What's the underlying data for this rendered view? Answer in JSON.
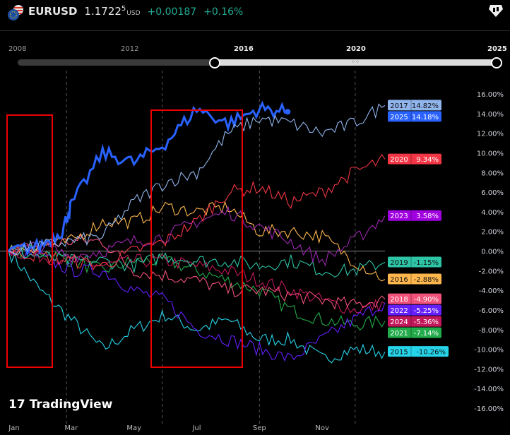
{
  "header": {
    "symbol": "EURUSD",
    "price_main": "1.1722",
    "price_sup": "5",
    "currency": "USD",
    "change": "+0.00187",
    "change_pct": "+0.16%",
    "flag_icon": "eu-us-flag-icon",
    "right_icon": "candles-badge-icon"
  },
  "range_slider": {
    "labels": [
      "2008",
      "2012",
      "2016",
      "2020",
      "2025"
    ],
    "selected_from": "2016",
    "selected_to": "2025"
  },
  "branding": {
    "logo_text": "TradingView"
  },
  "chart_data": {
    "type": "line",
    "title": "",
    "x_tick_labels": [
      "Jan",
      "Mar",
      "May",
      "Jul",
      "Sep",
      "Nov"
    ],
    "y_tick_labels": [
      "16.00%",
      "14.00%",
      "12.00%",
      "10.00%",
      "8.00%",
      "6.00%",
      "4.00%",
      "2.00%",
      "0.00%",
      "-2.00%",
      "-4.00%",
      "-6.00%",
      "-8.00%",
      "-10.00%",
      "-12.00%",
      "-14.00%",
      "-16.00%"
    ],
    "ylim": [
      -16,
      16
    ],
    "x_unit": "month of year (0=Jan 1, 12=Dec 31)",
    "grid": "dashed vertical lines",
    "series": [
      {
        "name": "2017",
        "color": "#90b4ec",
        "last": "14.82%",
        "x": [
          0,
          1,
          2,
          3,
          4,
          5,
          6,
          7,
          8,
          9,
          10,
          11,
          12
        ],
        "values": [
          0,
          0.5,
          1,
          1.5,
          5,
          7,
          8,
          12,
          13.5,
          13,
          12,
          13,
          14.82
        ]
      },
      {
        "name": "2025",
        "color": "#2962ff",
        "last": "14.18%",
        "bold": true,
        "x": [
          0,
          1,
          1.7,
          2,
          3,
          4,
          5,
          6,
          7,
          8,
          8.9
        ],
        "values": [
          0,
          0.5,
          2,
          4.7,
          10,
          9,
          11,
          14.5,
          13,
          14.5,
          14.18
        ]
      },
      {
        "name": "2020",
        "color": "#f23645",
        "last": "9.34%",
        "x": [
          0,
          1,
          2,
          3,
          4,
          5,
          6,
          7,
          8,
          9,
          10,
          11,
          12
        ],
        "values": [
          0,
          -0.5,
          -1,
          -1.5,
          0,
          1,
          3,
          6,
          6.5,
          5,
          6,
          8,
          9.34
        ]
      },
      {
        "name": "2023",
        "color": "#9c27b0",
        "label_color": "#a000e0",
        "last": "3.58%",
        "x": [
          0,
          1,
          2,
          3,
          4,
          5,
          6,
          7,
          8,
          9,
          10,
          11,
          12
        ],
        "values": [
          0,
          0.5,
          -0.5,
          0,
          1,
          1.5,
          3,
          4,
          2.5,
          1,
          -1,
          1,
          3.58
        ]
      },
      {
        "name": "2019",
        "color": "#2ec4a6",
        "last": "-1.15%",
        "x": [
          0,
          1,
          2,
          3,
          4,
          5,
          6,
          7,
          8,
          9,
          10,
          11,
          12
        ],
        "values": [
          0,
          -0.5,
          -1,
          -1,
          -1.5,
          -0.5,
          -1,
          -1,
          -1.5,
          -1,
          -2,
          -2,
          -1.15
        ]
      },
      {
        "name": "2016",
        "color": "#ffb74d",
        "last": "-2.88%",
        "x": [
          0,
          1,
          2,
          3,
          4,
          5,
          6,
          7,
          8,
          9,
          10,
          11,
          12
        ],
        "values": [
          0,
          0.5,
          1,
          3,
          3,
          4.5,
          4,
          4.5,
          2,
          2,
          1.5,
          -1,
          -2.88
        ]
      },
      {
        "name": "2018",
        "color": "#f2517a",
        "last": "-4.90%",
        "x": [
          0,
          1,
          2,
          3,
          4,
          5,
          6,
          7,
          8,
          9,
          10,
          11,
          12
        ],
        "values": [
          0,
          0.5,
          1,
          1,
          -2,
          -2.5,
          -3,
          -4,
          -4,
          -4.5,
          -5,
          -5.5,
          -4.9
        ]
      },
      {
        "name": "2022",
        "color": "#651fff",
        "last": "-5.25%",
        "x": [
          0,
          1,
          2,
          3,
          4,
          5,
          6,
          7,
          8,
          9,
          10,
          11,
          12
        ],
        "values": [
          0,
          -0.5,
          -2,
          -2,
          -4,
          -5,
          -8,
          -9,
          -10,
          -11,
          -9,
          -7,
          -5.25
        ]
      },
      {
        "name": "2024",
        "color": "#c2185b",
        "last": "-5.36%",
        "x": [
          0,
          1,
          2,
          3,
          4,
          5,
          6,
          7,
          8,
          9,
          10,
          11,
          12
        ],
        "values": [
          0,
          -0.5,
          -1,
          -1.5,
          -1,
          -1,
          -1.5,
          -2,
          -3,
          -4,
          -5,
          -6,
          -5.36
        ]
      },
      {
        "name": "2021",
        "color": "#22ab4b",
        "last": "-7.14%",
        "x": [
          0,
          1,
          2,
          3,
          4,
          5,
          6,
          7,
          8,
          9,
          10,
          11,
          12
        ],
        "values": [
          0,
          0,
          -1,
          -2,
          -1,
          -1,
          -2,
          -3,
          -4,
          -6,
          -7,
          -7.5,
          -7.14
        ]
      },
      {
        "name": "2015",
        "color": "#26d4ea",
        "last": "-10.26%",
        "x": [
          0,
          1,
          2,
          3,
          4,
          5,
          6,
          7,
          8,
          9,
          10,
          11,
          12
        ],
        "values": [
          0,
          -4,
          -7,
          -10,
          -8,
          -6.5,
          -8,
          -7,
          -9,
          -9,
          -11,
          -10,
          -10.26
        ]
      }
    ]
  }
}
